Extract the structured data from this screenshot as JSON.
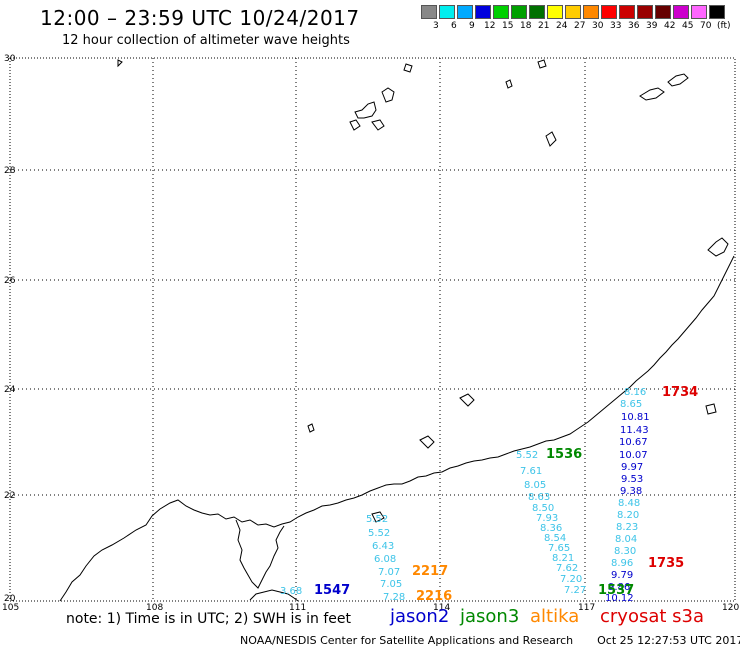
{
  "header": {
    "title": "12:00 – 23:59 UTC 10/24/2017",
    "subtitle": "12 hour collection of altimeter wave heights"
  },
  "scale": {
    "colors": [
      "#888888",
      "#00eeee",
      "#00aaff",
      "#0000dd",
      "#00d000",
      "#00a000",
      "#007000",
      "#ffff00",
      "#ffcc00",
      "#ff8800",
      "#ff0000",
      "#cc0000",
      "#990000",
      "#660000",
      "#cc00cc",
      "#ff66ff",
      "#000000"
    ],
    "labels": [
      "3",
      "6",
      "9",
      "12",
      "15",
      "18",
      "21",
      "24",
      "27",
      "30",
      "33",
      "36",
      "39",
      "42",
      "45",
      "70",
      "(ft)"
    ]
  },
  "map": {
    "lat_labels": [
      "30",
      "28",
      "26",
      "24",
      "22",
      "20"
    ],
    "lon_labels": [
      "105",
      "108",
      "111",
      "114",
      "117",
      "120"
    ],
    "land_color": "#ffffff",
    "coast_color": "#000000",
    "grid_style": "dotted"
  },
  "tracks": [
    {
      "satellite": "jason2",
      "color": "#3ec4e8",
      "values": [
        "5.52",
        "7.61",
        "8.05",
        "8.63",
        "8.50",
        "7.93",
        "8.36",
        "8.54",
        "7.65",
        "8.21",
        "7.62",
        "7.20",
        "7.27"
      ]
    },
    {
      "satellite": "jason2",
      "color": "#3ec4e8",
      "values": [
        "5.52",
        "5.52",
        "6.43",
        "6.08",
        "7.07",
        "7.05",
        "7.28"
      ]
    },
    {
      "satellite": "jason2",
      "color": "#3ec4e8",
      "values": [
        "3.68"
      ]
    },
    {
      "satellite": "cryosat",
      "color": "#3ec4e8",
      "values": [
        "8.16",
        "8.65"
      ]
    },
    {
      "satellite": "cryosat",
      "color": "#0000cc",
      "values": [
        "10.81",
        "11.43",
        "10.67",
        "10.07",
        "9.97",
        "9.53",
        "9.38"
      ]
    },
    {
      "satellite": "cryosat",
      "color": "#3ec4e8",
      "values": [
        "8.48",
        "8.20",
        "8.23",
        "8.04",
        "8.30",
        "8.96"
      ]
    },
    {
      "satellite": "cryosat",
      "color": "#0000cc",
      "values": [
        "9.79",
        "9.86",
        "10.12"
      ]
    }
  ],
  "time_labels": [
    {
      "text": "1536",
      "color": "#008800"
    },
    {
      "text": "1547",
      "color": "#0000cc"
    },
    {
      "text": "2217",
      "color": "#ff8800"
    },
    {
      "text": "2216",
      "color": "#ff8800"
    },
    {
      "text": "1537",
      "color": "#008800"
    },
    {
      "text": "1734",
      "color": "#dd0000"
    },
    {
      "text": "1735",
      "color": "#dd0000"
    }
  ],
  "legend": {
    "note": "note: 1) Time is in UTC; 2) SWH is in feet",
    "items": [
      {
        "name": "jason2",
        "color": "#0000cc"
      },
      {
        "name": "jason3",
        "color": "#008800"
      },
      {
        "name": "altika",
        "color": "#ff8800"
      },
      {
        "name": "cryosat s3a",
        "color": "#dd0000"
      }
    ]
  },
  "footer": {
    "credit": "NOAA/NESDIS Center for Satellite Applications and Research",
    "timestamp": "Oct 25 12:27:53 UTC 2017"
  }
}
